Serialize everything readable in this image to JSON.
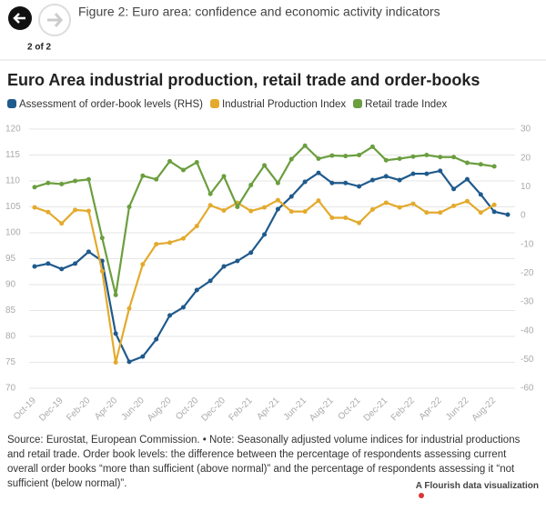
{
  "header": {
    "figure_title": "Figure 2: Euro area: confidence and economic activity indicators",
    "page_indicator": "2 of 2"
  },
  "chart_data": {
    "type": "line",
    "title": "Euro Area industrial production, retail trade and order-books",
    "categories": [
      "Oct-19",
      null,
      "Dec-19",
      null,
      "Feb-20",
      null,
      "Apr-20",
      null,
      "Jun-20",
      null,
      "Aug-20",
      null,
      "Oct-20",
      null,
      "Dec-20",
      null,
      "Feb-21",
      null,
      "Apr-21",
      null,
      "Jun-21",
      null,
      "Aug-21",
      null,
      "Oct-21",
      null,
      "Dec-21",
      null,
      "Feb-22",
      null,
      "Apr-22",
      null,
      "Jun-22",
      null,
      "Aug-22",
      null
    ],
    "series": [
      {
        "name": "Assessment of order-book levels (RHS)",
        "color": "#1f5a8c",
        "axis": "y2",
        "values": [
          -17.7,
          -16.7,
          -18.6,
          -16.7,
          -12.6,
          -15.8,
          -41,
          -50.8,
          -49,
          -43,
          -34.7,
          -31.9,
          -25.9,
          -22.7,
          -17.7,
          -15.8,
          -12.9,
          -6.6,
          2.2,
          6.6,
          11.7,
          14.8,
          11.3,
          11.3,
          10.1,
          12.3,
          13.6,
          12.3,
          14.5,
          14.5,
          15.5,
          9.2,
          12.6,
          7.3,
          1.3,
          0.3
        ]
      },
      {
        "name": "Industrial Production Index",
        "color": "#e3aa2d",
        "values": [
          104.9,
          104,
          101.8,
          104.4,
          104.2,
          92.6,
          75,
          85.4,
          93.9,
          97.8,
          98.1,
          98.9,
          101.3,
          105.3,
          104.3,
          105.8,
          104.2,
          104.9,
          106.3,
          104.1,
          104.1,
          106.2,
          102.9,
          102.9,
          101.9,
          104.5,
          105.8,
          104.9,
          105.6,
          103.9,
          103.9,
          105.2,
          106.1,
          103.9,
          105.4,
          null
        ]
      },
      {
        "name": "Retail trade Index",
        "color": "#6b9e3f",
        "values": [
          108.8,
          109.6,
          109.4,
          110,
          110.3,
          99,
          88,
          105,
          111,
          110.3,
          113.8,
          112.1,
          113.6,
          107.5,
          110.9,
          105,
          109.2,
          113,
          109.6,
          114.2,
          116.8,
          114.3,
          114.9,
          114.8,
          115,
          116.6,
          114,
          114.3,
          114.7,
          115,
          114.6,
          114.6,
          113.5,
          113.2,
          112.8,
          null
        ]
      }
    ],
    "ylim": [
      70,
      120
    ],
    "yticks": [
      70,
      75,
      80,
      85,
      90,
      95,
      100,
      105,
      110,
      115,
      120
    ],
    "y2lim": [
      -60,
      30
    ],
    "y2ticks": [
      -60,
      -50,
      -40,
      -30,
      -20,
      -10,
      0,
      10,
      20,
      30
    ],
    "grid": true
  },
  "source_note": "Source: Eurostat, European Commission. • Note: Seasonally adjusted volume indices for industrial productions and retail trade. Order book levels: the difference between the percentage of respondents assessing current overall order books “more than sufficient (above normal)” and the percentage of respondents assessing it “not sufficient (below normal)”.",
  "credit": "A Flourish data visualization"
}
